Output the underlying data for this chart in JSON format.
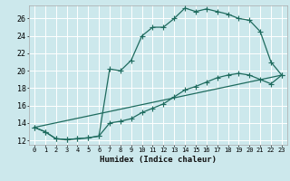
{
  "xlabel": "Humidex (Indice chaleur)",
  "bg_color": "#cce8ec",
  "grid_color": "#b0d4d8",
  "line_color": "#1e6b5e",
  "xlim": [
    -0.5,
    23.5
  ],
  "ylim": [
    11.5,
    27.5
  ],
  "xticks": [
    0,
    1,
    2,
    3,
    4,
    5,
    6,
    7,
    8,
    9,
    10,
    11,
    12,
    13,
    14,
    15,
    16,
    17,
    18,
    19,
    20,
    21,
    22,
    23
  ],
  "yticks": [
    12,
    14,
    16,
    18,
    20,
    22,
    24,
    26
  ],
  "line1_x": [
    0,
    1,
    2,
    3,
    4,
    5,
    6,
    7,
    8,
    9,
    10,
    11,
    12,
    13,
    14,
    15,
    16,
    17,
    18,
    19,
    20,
    21,
    22,
    23
  ],
  "line1_y": [
    13.5,
    13.0,
    12.2,
    12.1,
    12.2,
    12.3,
    12.5,
    20.2,
    20.0,
    21.2,
    24.0,
    25.0,
    25.0,
    26.0,
    27.2,
    26.8,
    27.1,
    26.8,
    26.5,
    26.0,
    25.8,
    24.5,
    21.0,
    19.5
  ],
  "line2_x": [
    0,
    1,
    2,
    3,
    4,
    5,
    6,
    7,
    8,
    9,
    10,
    11,
    12,
    13,
    14,
    15,
    16,
    17,
    18,
    19,
    20,
    21,
    22,
    23
  ],
  "line2_y": [
    13.5,
    13.0,
    12.2,
    12.1,
    12.2,
    12.3,
    12.5,
    14.0,
    14.2,
    14.5,
    15.2,
    15.7,
    16.2,
    17.0,
    17.8,
    18.2,
    18.7,
    19.2,
    19.5,
    19.7,
    19.5,
    19.0,
    18.5,
    19.5
  ],
  "line3_x": [
    0,
    23
  ],
  "line3_y": [
    13.5,
    19.5
  ]
}
